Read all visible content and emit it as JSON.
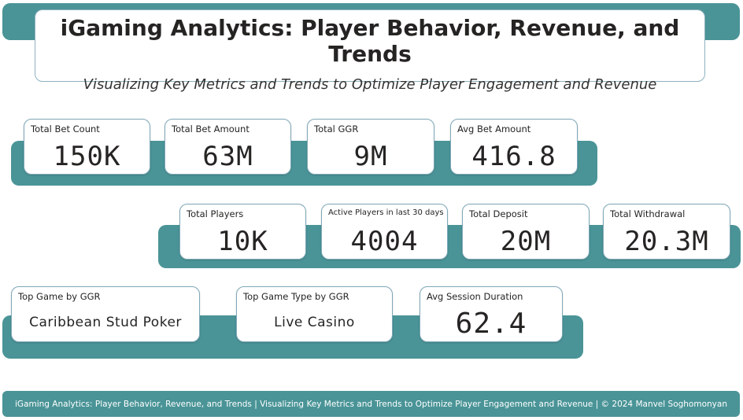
{
  "header": {
    "title": "iGaming Analytics: Player Behavior, Revenue, and Trends",
    "subtitle": "Visualizing Key Metrics and Trends to Optimize Player Engagement and Revenue"
  },
  "row1": [
    {
      "label": "Total Bet Count",
      "value": "150K"
    },
    {
      "label": "Total Bet Amount",
      "value": "63M"
    },
    {
      "label": "Total GGR",
      "value": "9M"
    },
    {
      "label": "Avg Bet Amount",
      "value": "416.8"
    }
  ],
  "row2": [
    {
      "label": "Total Players",
      "value": "10K"
    },
    {
      "label": "Active Players in last 30 days",
      "value": "4004"
    },
    {
      "label": "Total Deposit",
      "value": "20M"
    },
    {
      "label": "Total Withdrawal",
      "value": "20.3M"
    }
  ],
  "row3": [
    {
      "label": "Top Game by GGR",
      "value": "Caribbean Stud Poker"
    },
    {
      "label": "Top Game Type by GGR",
      "value": "Live Casino"
    },
    {
      "label": "Avg Session Duration",
      "value": "62.4"
    }
  ],
  "footer": {
    "text": "iGaming Analytics: Player Behavior, Revenue, and Trends | Visualizing Key Metrics and Trends to Optimize Player Engagement and Revenue | © 2024 Manvel Soghomonyan"
  },
  "colors": {
    "accent": "#4a9497",
    "card_border": "#7fa8b8"
  }
}
